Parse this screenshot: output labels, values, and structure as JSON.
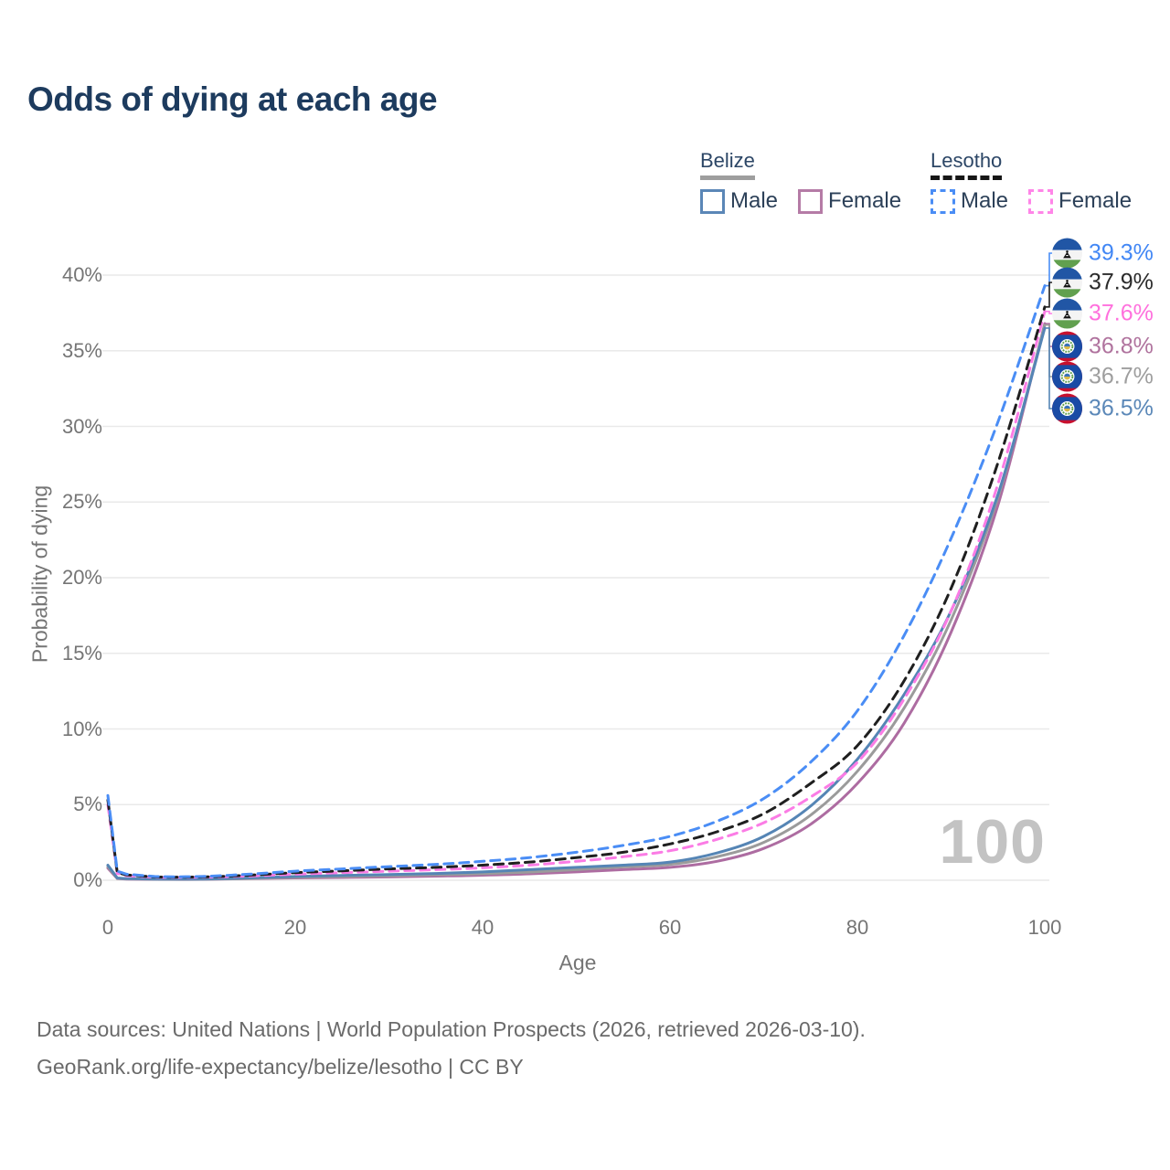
{
  "title": "Odds of dying at each age",
  "legend": {
    "groups": [
      {
        "country": "Belize",
        "line_style": "solid",
        "underline_color": "#9e9e9e",
        "items": [
          {
            "label": "Male",
            "color": "#5b87b7",
            "dashed": false
          },
          {
            "label": "Female",
            "color": "#b57ba6",
            "dashed": false
          }
        ]
      },
      {
        "country": "Lesotho",
        "line_style": "dashed",
        "underline_color": "#161616",
        "items": [
          {
            "label": "Male",
            "color": "#4a8df5",
            "dashed": true
          },
          {
            "label": "Female",
            "color": "#ff85e8",
            "dashed": true
          }
        ]
      }
    ]
  },
  "chart_data": {
    "type": "line",
    "title": "Odds of dying at each age",
    "xlabel": "Age",
    "ylabel": "Probability of dying",
    "xlim": [
      0,
      100
    ],
    "ylim": [
      0,
      40
    ],
    "x_tick_labels": [
      "0",
      "20",
      "40",
      "60",
      "80",
      "100"
    ],
    "x_tick_values": [
      0,
      20,
      40,
      60,
      80,
      100
    ],
    "y_tick_labels": [
      "0%",
      "5%",
      "10%",
      "15%",
      "20%",
      "25%",
      "30%",
      "35%",
      "40%"
    ],
    "y_tick_values": [
      0,
      5,
      10,
      15,
      20,
      25,
      30,
      35,
      40
    ],
    "grid": "horizontal",
    "legend_position": "top-right",
    "watermark": "100",
    "ages": [
      0,
      1,
      2,
      5,
      10,
      15,
      20,
      25,
      30,
      35,
      40,
      45,
      50,
      55,
      60,
      65,
      70,
      75,
      80,
      85,
      90,
      95,
      100
    ],
    "series": [
      {
        "id": "belize-female",
        "country": "Belize",
        "sex": "Female",
        "color": "#ad6ca1",
        "dash": "solid",
        "end_label": "36.8%",
        "end_label_color": "#b0739e",
        "flag": "belize",
        "values": [
          0.8,
          0.11,
          0.08,
          0.06,
          0.06,
          0.1,
          0.15,
          0.18,
          0.22,
          0.27,
          0.33,
          0.42,
          0.55,
          0.7,
          0.85,
          1.25,
          2.1,
          3.7,
          6.4,
          10.4,
          16.4,
          24.8,
          36.8
        ]
      },
      {
        "id": "belize-total",
        "country": "Belize",
        "sex": "Both",
        "color": "#9b9b9b",
        "dash": "solid",
        "end_label": "36.7%",
        "end_label_color": "#9e9e9e",
        "flag": "belize",
        "values": [
          0.9,
          0.13,
          0.09,
          0.07,
          0.07,
          0.12,
          0.2,
          0.25,
          0.3,
          0.36,
          0.43,
          0.54,
          0.7,
          0.88,
          1.05,
          1.55,
          2.5,
          4.3,
          7.2,
          11.4,
          17.2,
          25.3,
          36.7
        ]
      },
      {
        "id": "belize-male",
        "country": "Belize",
        "sex": "Male",
        "color": "#5585b5",
        "dash": "solid",
        "end_label": "36.5%",
        "end_label_color": "#5b88b8",
        "flag": "belize",
        "values": [
          1.0,
          0.15,
          0.1,
          0.08,
          0.08,
          0.15,
          0.25,
          0.32,
          0.38,
          0.45,
          0.55,
          0.7,
          0.85,
          1.0,
          1.2,
          1.8,
          2.9,
          4.9,
          8.0,
          12.3,
          17.8,
          25.5,
          36.5
        ]
      },
      {
        "id": "lesotho-female",
        "country": "Lesotho",
        "sex": "Female",
        "color": "#fb7ce5",
        "dash": "dashed",
        "end_label": "37.6%",
        "end_label_color": "#ff70dd",
        "flag": "lesotho",
        "values": [
          5.0,
          0.45,
          0.3,
          0.2,
          0.2,
          0.28,
          0.4,
          0.5,
          0.6,
          0.7,
          0.82,
          1.0,
          1.25,
          1.55,
          1.95,
          2.7,
          3.8,
          5.5,
          7.8,
          12.0,
          17.8,
          26.2,
          37.6
        ]
      },
      {
        "id": "lesotho-total",
        "country": "Lesotho",
        "sex": "Both",
        "color": "#1f1f1f",
        "dash": "dashed",
        "end_label": "37.9%",
        "end_label_color": "#2b2b2b",
        "flag": "lesotho",
        "values": [
          5.3,
          0.5,
          0.35,
          0.22,
          0.22,
          0.33,
          0.5,
          0.62,
          0.75,
          0.85,
          1.0,
          1.2,
          1.5,
          1.85,
          2.4,
          3.2,
          4.4,
          6.4,
          8.9,
          13.2,
          19.3,
          27.6,
          37.9
        ]
      },
      {
        "id": "lesotho-male",
        "country": "Lesotho",
        "sex": "Male",
        "color": "#4a8df5",
        "dash": "dashed",
        "end_label": "39.3%",
        "end_label_color": "#4287f5",
        "flag": "lesotho",
        "values": [
          5.6,
          0.6,
          0.4,
          0.25,
          0.25,
          0.4,
          0.6,
          0.75,
          0.9,
          1.05,
          1.25,
          1.5,
          1.85,
          2.3,
          2.9,
          3.9,
          5.4,
          7.8,
          11.2,
          16.2,
          22.6,
          30.3,
          39.3
        ]
      }
    ]
  },
  "footer": {
    "line1": "Data sources: United Nations | World Population Prospects (2026, retrieved 2026-03-10).",
    "line2": "GeoRank.org/life-expectancy/belize/lesotho | CC BY"
  }
}
